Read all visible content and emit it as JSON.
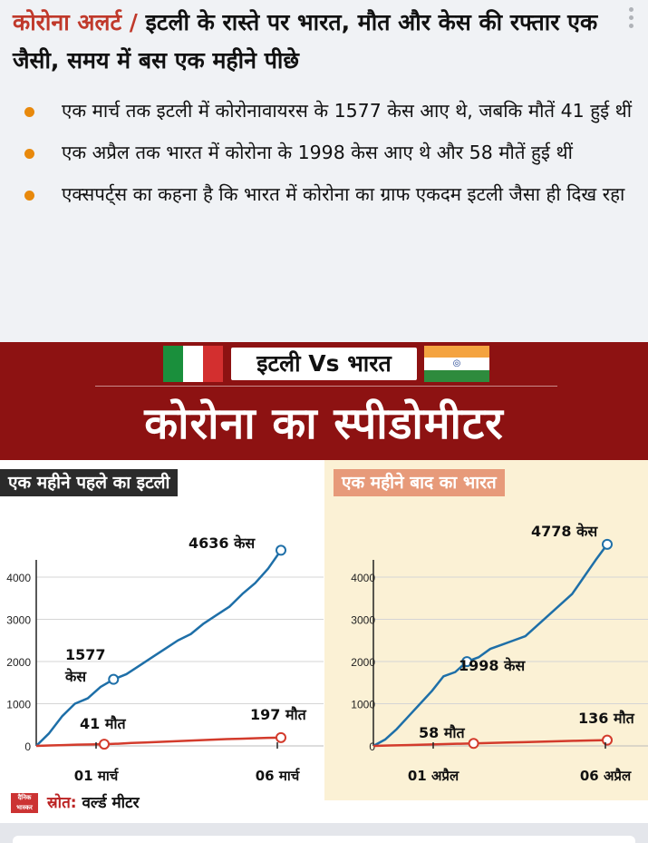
{
  "headline": {
    "tag": "कोरोना अलर्ट /",
    "text": " इटली के रास्ते पर भारत, मौत और केस की रफ्तार एक जैसी, समय में बस एक महीने पीछे"
  },
  "bullets": [
    "एक मार्च तक इटली में कोरोनावायरस के 1577 केस आए थे, जबकि मौतें 41 हुई थीं",
    "एक अप्रैल तक भारत में कोरोना के 1998 केस आए थे और 58 मौतें हुई थीं",
    "एक्सपर्ट्स का कहना है कि भारत में कोरोना का ग्राफ एकदम इटली जैसा ही दिख रहा"
  ],
  "infographic": {
    "vs_title": "इटली Vs भारत",
    "title": "कोरोना का स्पीडोमीटर",
    "left_label": "एक महीने पहले का इटली",
    "right_label": "एक महीने बाद का भारत",
    "source_label": "स्रोत:",
    "source_value": " वर्ल्ड मीटर",
    "logo_text": "दैनिक भास्कर"
  },
  "colors": {
    "accent_red": "#8d1212",
    "cases_line": "#1e6fa8",
    "deaths_line": "#d33b2c",
    "bullet_dot": "#e8890c",
    "italy_green": "#1a8f3c",
    "italy_red": "#d32f2f",
    "india_saffron": "#f4a340",
    "india_green": "#2e8b3d"
  },
  "chart_data": [
    {
      "type": "line",
      "ylim": [
        0,
        4800
      ],
      "yticks": [
        "0",
        "1000",
        "2000",
        "3000",
        "4000"
      ],
      "x_labels": [
        "01 मार्च",
        "06 मार्च"
      ],
      "series": [
        {
          "values": [
            0,
            300,
            700,
            1000,
            1128,
            1400,
            1577,
            1700,
            1900,
            2100,
            2300,
            2500,
            2650,
            2900,
            3100,
            3300,
            3600,
            3858,
            4200,
            4636
          ]
        },
        {
          "values": [
            0,
            10,
            20,
            29,
            35,
            41,
            52,
            70,
            80,
            95,
            107,
            120,
            135,
            148,
            160,
            170,
            180,
            190,
            197
          ]
        }
      ],
      "annotations": [
        {
          "text": "4636 केस"
        },
        {
          "text": "1577"
        },
        {
          "text": "केस"
        },
        {
          "text": "41 मौत"
        },
        {
          "text": "197 मौत"
        }
      ]
    },
    {
      "type": "line",
      "ylim": [
        0,
        4800
      ],
      "yticks": [
        "0",
        "1000",
        "2000",
        "3000",
        "4000"
      ],
      "x_labels": [
        "01 अप्रैल",
        "06 अप्रैल"
      ],
      "series": [
        {
          "values": [
            0,
            150,
            400,
            700,
            1000,
            1300,
            1650,
            1750,
            1998,
            2100,
            2300,
            2400,
            2500,
            2600,
            2850,
            3100,
            3350,
            3600,
            4000,
            4400,
            4778
          ]
        },
        {
          "values": [
            0,
            10,
            20,
            30,
            40,
            50,
            58,
            70,
            80,
            90,
            100,
            110,
            120,
            130,
            136
          ]
        }
      ],
      "annotations": [
        {
          "text": "4778 केस"
        },
        {
          "text": "1998 केस"
        },
        {
          "text": "58 मौत"
        },
        {
          "text": "136 मौत"
        }
      ]
    }
  ]
}
